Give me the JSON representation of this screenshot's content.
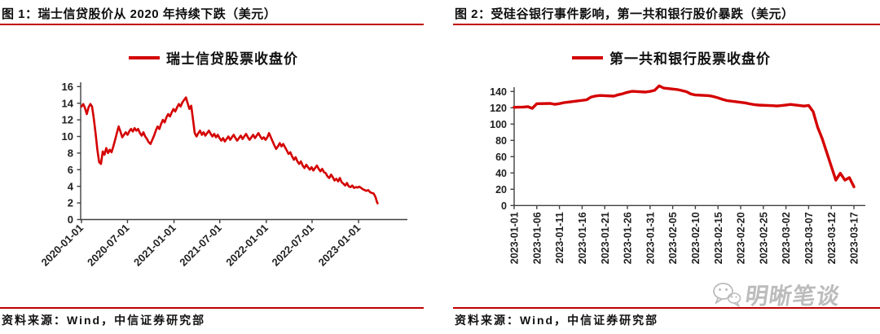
{
  "page": {
    "background": "#ffffff"
  },
  "colors": {
    "accent_red": "#c00000",
    "line_red": "#d40000",
    "axis_gray": "#404040",
    "text_black": "#1f1f1f",
    "watermark_gray": "#b3b3b3"
  },
  "panels": [
    {
      "title": "图 1：瑞士信贷股价从 2020 年持续下跌（美元）",
      "legend_label": "瑞士信贷股票收盘价",
      "source": "资料来源：Wind，中信证券研究部"
    },
    {
      "title": "图 2：受硅谷银行事件影响，第一共和银行股价暴跌（美元）",
      "legend_label": "第一共和银行股票收盘价",
      "source": "资料来源：Wind，中信证券研究部"
    }
  ],
  "watermark": {
    "label": "明晰笔谈",
    "icon": "wechat-icon"
  },
  "chart_data": [
    {
      "type": "line",
      "title": "瑞士信贷股价从 2020 年持续下跌（美元）",
      "legend": "瑞士信贷股票收盘价",
      "x_origin": "2020-01-01",
      "x_unit": "days-since-origin",
      "xlim_days": [
        0,
        1290
      ],
      "ylim": [
        0,
        16
      ],
      "grid": false,
      "y_ticks": [
        0,
        2,
        4,
        6,
        8,
        10,
        12,
        14,
        16
      ],
      "x_ticks": [
        {
          "label": "2020-01-01",
          "day": 0
        },
        {
          "label": "2020-07-01",
          "day": 182
        },
        {
          "label": "2021-01-01",
          "day": 366
        },
        {
          "label": "2021-07-01",
          "day": 547
        },
        {
          "label": "2022-01-01",
          "day": 731
        },
        {
          "label": "2022-07-01",
          "day": 912
        },
        {
          "label": "2023-01-01",
          "day": 1096
        }
      ],
      "series": [
        {
          "name": "瑞士信贷股票收盘价",
          "color": "#d40000",
          "points": [
            [
              0,
              13.6
            ],
            [
              7,
              13.9
            ],
            [
              14,
              13.4
            ],
            [
              21,
              12.7
            ],
            [
              28,
              13.5
            ],
            [
              35,
              13.9
            ],
            [
              42,
              13.6
            ],
            [
              49,
              12.1
            ],
            [
              56,
              10.3
            ],
            [
              63,
              8.4
            ],
            [
              70,
              6.9
            ],
            [
              77,
              6.7
            ],
            [
              84,
              8.2
            ],
            [
              91,
              7.8
            ],
            [
              98,
              8.6
            ],
            [
              105,
              8.0
            ],
            [
              112,
              8.4
            ],
            [
              119,
              8.1
            ],
            [
              126,
              8.8
            ],
            [
              133,
              9.6
            ],
            [
              140,
              10.4
            ],
            [
              147,
              11.2
            ],
            [
              154,
              10.6
            ],
            [
              161,
              9.9
            ],
            [
              168,
              10.2
            ],
            [
              175,
              10.5
            ],
            [
              182,
              10.2
            ],
            [
              189,
              10.6
            ],
            [
              196,
              10.9
            ],
            [
              203,
              10.6
            ],
            [
              210,
              11.0
            ],
            [
              217,
              10.7
            ],
            [
              224,
              10.9
            ],
            [
              231,
              10.4
            ],
            [
              238,
              10.1
            ],
            [
              245,
              10.5
            ],
            [
              252,
              10.0
            ],
            [
              259,
              9.7
            ],
            [
              266,
              9.3
            ],
            [
              273,
              9.1
            ],
            [
              280,
              9.6
            ],
            [
              287,
              10.1
            ],
            [
              294,
              10.7
            ],
            [
              301,
              11.2
            ],
            [
              308,
              10.9
            ],
            [
              315,
              11.5
            ],
            [
              322,
              12.0
            ],
            [
              329,
              11.7
            ],
            [
              336,
              12.3
            ],
            [
              343,
              12.7
            ],
            [
              350,
              12.4
            ],
            [
              357,
              12.9
            ],
            [
              364,
              13.3
            ],
            [
              371,
              13.0
            ],
            [
              378,
              13.5
            ],
            [
              385,
              13.9
            ],
            [
              392,
              13.6
            ],
            [
              399,
              14.1
            ],
            [
              406,
              14.4
            ],
            [
              413,
              14.7
            ],
            [
              420,
              14.0
            ],
            [
              427,
              13.3
            ],
            [
              434,
              13.7
            ],
            [
              441,
              12.1
            ],
            [
              448,
              10.4
            ],
            [
              455,
              10.0
            ],
            [
              462,
              10.4
            ],
            [
              469,
              10.7
            ],
            [
              476,
              10.2
            ],
            [
              483,
              10.5
            ],
            [
              490,
              10.1
            ],
            [
              497,
              10.4
            ],
            [
              504,
              10.7
            ],
            [
              511,
              10.3
            ],
            [
              518,
              10.0
            ],
            [
              525,
              10.3
            ],
            [
              532,
              9.9
            ],
            [
              539,
              10.2
            ],
            [
              546,
              9.8
            ],
            [
              553,
              9.5
            ],
            [
              560,
              9.8
            ],
            [
              567,
              9.4
            ],
            [
              574,
              9.7
            ],
            [
              581,
              10.0
            ],
            [
              588,
              9.6
            ],
            [
              595,
              9.9
            ],
            [
              602,
              10.2
            ],
            [
              609,
              9.8
            ],
            [
              616,
              9.5
            ],
            [
              623,
              9.8
            ],
            [
              630,
              10.1
            ],
            [
              637,
              9.7
            ],
            [
              644,
              10.0
            ],
            [
              651,
              10.3
            ],
            [
              658,
              9.9
            ],
            [
              665,
              9.6
            ],
            [
              672,
              9.9
            ],
            [
              679,
              10.2
            ],
            [
              686,
              9.8
            ],
            [
              693,
              10.1
            ],
            [
              700,
              10.4
            ],
            [
              707,
              10.0
            ],
            [
              714,
              9.7
            ],
            [
              721,
              9.9
            ],
            [
              728,
              9.6
            ],
            [
              735,
              9.9
            ],
            [
              742,
              10.4
            ],
            [
              749,
              9.9
            ],
            [
              756,
              9.4
            ],
            [
              763,
              8.9
            ],
            [
              770,
              8.5
            ],
            [
              777,
              8.8
            ],
            [
              784,
              9.2
            ],
            [
              791,
              8.8
            ],
            [
              798,
              9.1
            ],
            [
              805,
              8.7
            ],
            [
              812,
              8.3
            ],
            [
              819,
              7.9
            ],
            [
              826,
              8.1
            ],
            [
              833,
              7.6
            ],
            [
              840,
              7.2
            ],
            [
              847,
              7.5
            ],
            [
              854,
              7.0
            ],
            [
              861,
              6.7
            ],
            [
              868,
              7.0
            ],
            [
              875,
              6.5
            ],
            [
              882,
              6.2
            ],
            [
              889,
              6.6
            ],
            [
              896,
              6.3
            ],
            [
              903,
              6.0
            ],
            [
              910,
              6.3
            ],
            [
              917,
              5.9
            ],
            [
              924,
              6.2
            ],
            [
              931,
              6.5
            ],
            [
              938,
              6.1
            ],
            [
              945,
              5.8
            ],
            [
              952,
              6.1
            ],
            [
              959,
              5.7
            ],
            [
              966,
              5.6
            ],
            [
              973,
              5.2
            ],
            [
              980,
              5.0
            ],
            [
              987,
              5.4
            ],
            [
              994,
              5.1
            ],
            [
              1001,
              4.7
            ],
            [
              1008,
              4.9
            ],
            [
              1015,
              4.6
            ],
            [
              1022,
              5.0
            ],
            [
              1029,
              4.5
            ],
            [
              1036,
              4.3
            ],
            [
              1043,
              4.1
            ],
            [
              1050,
              4.4
            ],
            [
              1057,
              4.0
            ],
            [
              1064,
              3.9
            ],
            [
              1071,
              4.1
            ],
            [
              1078,
              3.8
            ],
            [
              1085,
              3.9
            ],
            [
              1092,
              3.85
            ],
            [
              1099,
              3.95
            ],
            [
              1106,
              3.8
            ],
            [
              1113,
              3.65
            ],
            [
              1120,
              3.55
            ],
            [
              1127,
              3.45
            ],
            [
              1134,
              3.55
            ],
            [
              1141,
              3.3
            ],
            [
              1148,
              3.2
            ],
            [
              1155,
              3.15
            ],
            [
              1160,
              2.9
            ],
            [
              1164,
              2.6
            ],
            [
              1168,
              2.2
            ],
            [
              1171,
              1.95
            ]
          ]
        }
      ]
    },
    {
      "type": "line",
      "title": "受硅谷银行事件影响，第一共和银行股价暴跌（美元）",
      "legend": "第一共和银行股票收盘价",
      "x_origin": "2023-01-01",
      "x_unit": "days-since-origin",
      "xlim_days": [
        0,
        78
      ],
      "ylim": [
        0,
        140
      ],
      "grid": false,
      "y_ticks": [
        0,
        20,
        40,
        60,
        80,
        100,
        120,
        140
      ],
      "x_ticks": [
        {
          "label": "2023-01-01",
          "day": 0
        },
        {
          "label": "2023-01-06",
          "day": 5
        },
        {
          "label": "2023-01-11",
          "day": 10
        },
        {
          "label": "2023-01-16",
          "day": 15
        },
        {
          "label": "2023-01-21",
          "day": 20
        },
        {
          "label": "2023-01-26",
          "day": 25
        },
        {
          "label": "2023-01-31",
          "day": 30
        },
        {
          "label": "2023-02-05",
          "day": 35
        },
        {
          "label": "2023-02-10",
          "day": 40
        },
        {
          "label": "2023-02-15",
          "day": 45
        },
        {
          "label": "2023-02-20",
          "day": 50
        },
        {
          "label": "2023-02-25",
          "day": 55
        },
        {
          "label": "2023-03-02",
          "day": 60
        },
        {
          "label": "2023-03-07",
          "day": 65
        },
        {
          "label": "2023-03-12",
          "day": 70
        },
        {
          "label": "2023-03-17",
          "day": 75
        }
      ],
      "series": [
        {
          "name": "第一共和银行股票收盘价",
          "color": "#d40000",
          "points": [
            [
              0,
              120.6
            ],
            [
              2,
              120.9
            ],
            [
              3,
              121.4
            ],
            [
              4,
              119.3
            ],
            [
              5,
              125.0
            ],
            [
              8,
              125.3
            ],
            [
              9,
              124.2
            ],
            [
              10,
              125.1
            ],
            [
              11,
              126.3
            ],
            [
              12,
              127.0
            ],
            [
              16,
              129.8
            ],
            [
              17,
              133.2
            ],
            [
              18,
              134.5
            ],
            [
              19,
              135.1
            ],
            [
              22,
              134.3
            ],
            [
              23,
              136.0
            ],
            [
              24,
              137.3
            ],
            [
              25,
              139.0
            ],
            [
              26,
              140.2
            ],
            [
              29,
              139.3
            ],
            [
              30,
              140.1
            ],
            [
              31,
              141.4
            ],
            [
              32,
              146.9
            ],
            [
              33,
              144.2
            ],
            [
              36,
              142.4
            ],
            [
              37,
              141.2
            ],
            [
              38,
              139.8
            ],
            [
              39,
              137.0
            ],
            [
              40,
              135.7
            ],
            [
              43,
              134.9
            ],
            [
              44,
              133.8
            ],
            [
              45,
              132.2
            ],
            [
              46,
              130.3
            ],
            [
              47,
              128.8
            ],
            [
              51,
              126.0
            ],
            [
              52,
              124.8
            ],
            [
              53,
              123.9
            ],
            [
              54,
              123.3
            ],
            [
              57,
              122.6
            ],
            [
              58,
              122.2
            ],
            [
              59,
              122.7
            ],
            [
              60,
              123.4
            ],
            [
              61,
              124.1
            ],
            [
              64,
              122.1
            ],
            [
              65,
              122.9
            ],
            [
              66,
              115.2
            ],
            [
              67,
              96.0
            ],
            [
              68,
              82.0
            ],
            [
              71,
              31.2
            ],
            [
              72,
              39.6
            ],
            [
              73,
              31.2
            ],
            [
              74,
              34.3
            ],
            [
              75,
              23.0
            ]
          ]
        }
      ]
    }
  ]
}
